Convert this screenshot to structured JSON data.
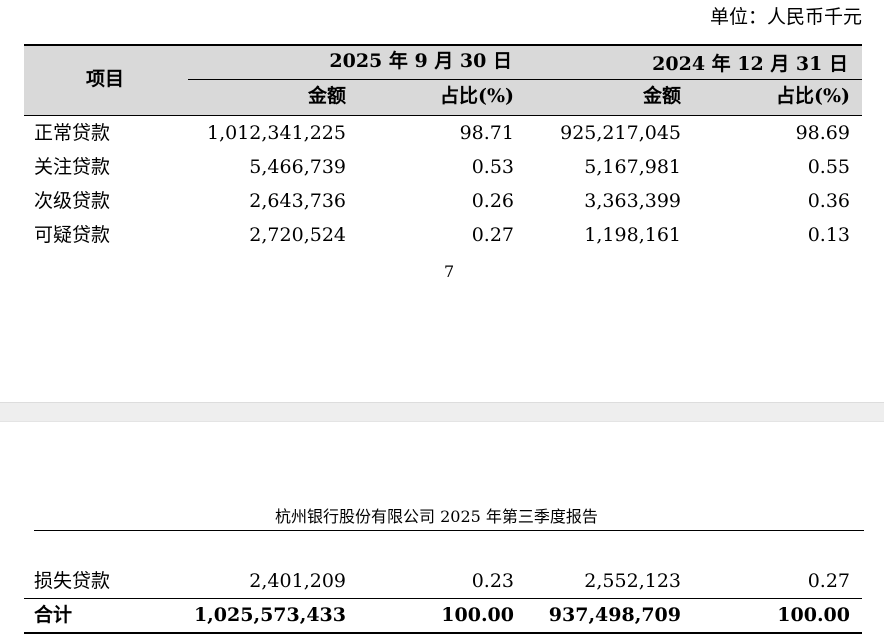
{
  "unit_label": "单位：人民币千元",
  "table": {
    "item_header": "项目",
    "periods": [
      "2025 年 9 月 30 日",
      "2024 年 12 月 31 日"
    ],
    "sub_headers": [
      "金额",
      "占比(%)",
      "金额",
      "占比(%)"
    ],
    "rows_page1": [
      {
        "item": "正常贷款",
        "amt1": "1,012,341,225",
        "pct1": "98.71",
        "amt2": "925,217,045",
        "pct2": "98.69"
      },
      {
        "item": "关注贷款",
        "amt1": "5,466,739",
        "pct1": "0.53",
        "amt2": "5,167,981",
        "pct2": "0.55"
      },
      {
        "item": "次级贷款",
        "amt1": "2,643,736",
        "pct1": "0.26",
        "amt2": "3,363,399",
        "pct2": "0.36"
      },
      {
        "item": "可疑贷款",
        "amt1": "2,720,524",
        "pct1": "0.27",
        "amt2": "1,198,161",
        "pct2": "0.13"
      }
    ],
    "rows_page2": [
      {
        "item": "损失贷款",
        "amt1": "2,401,209",
        "pct1": "0.23",
        "amt2": "2,552,123",
        "pct2": "0.27"
      }
    ],
    "total": {
      "item": "合计",
      "amt1": "1,025,573,433",
      "pct1": "100.00",
      "amt2": "937,498,709",
      "pct2": "100.00"
    }
  },
  "page_number": "7",
  "page_header": "杭州银行股份有限公司 2025 年第三季度报告"
}
